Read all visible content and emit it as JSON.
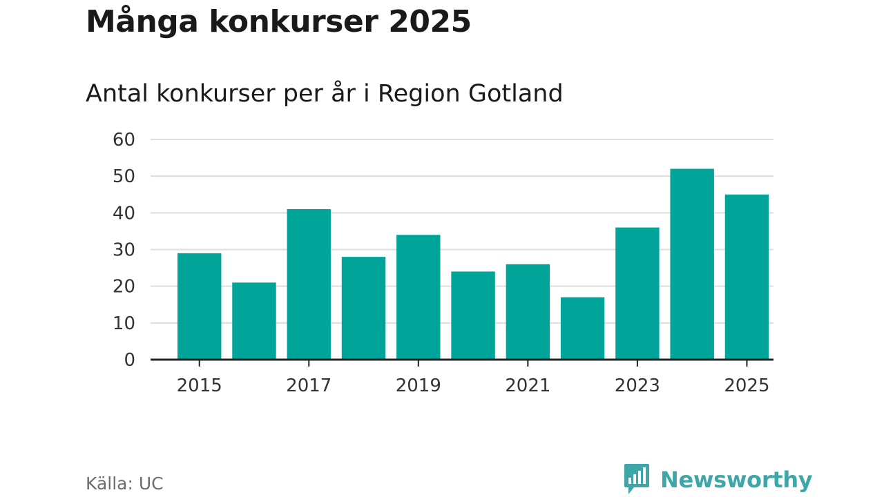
{
  "title": "Många konkurser 2025",
  "subtitle": "Antal konkurser per år i Region Gotland",
  "source": "Källa: UC",
  "brand": {
    "name": "Newsworthy",
    "logo_icon": "newsworthy-logo-icon",
    "color": "#3ea6a6"
  },
  "colors": {
    "bar": "#00a499",
    "grid": "#dddddd",
    "axis": "#222222"
  },
  "chart_data": {
    "type": "bar",
    "title": "Antal konkurser per år i Region Gotland",
    "xlabel": "",
    "ylabel": "",
    "categories": [
      "2015",
      "2016",
      "2017",
      "2018",
      "2019",
      "2020",
      "2021",
      "2022",
      "2023",
      "2024",
      "2025"
    ],
    "values": [
      29,
      21,
      41,
      28,
      34,
      24,
      26,
      17,
      36,
      52,
      45
    ],
    "x_tick_labels": [
      "2015",
      "2017",
      "2019",
      "2021",
      "2023",
      "2025"
    ],
    "y_ticks": [
      0,
      10,
      20,
      30,
      40,
      50,
      60
    ],
    "ylim": [
      0,
      60
    ],
    "grid": true
  }
}
